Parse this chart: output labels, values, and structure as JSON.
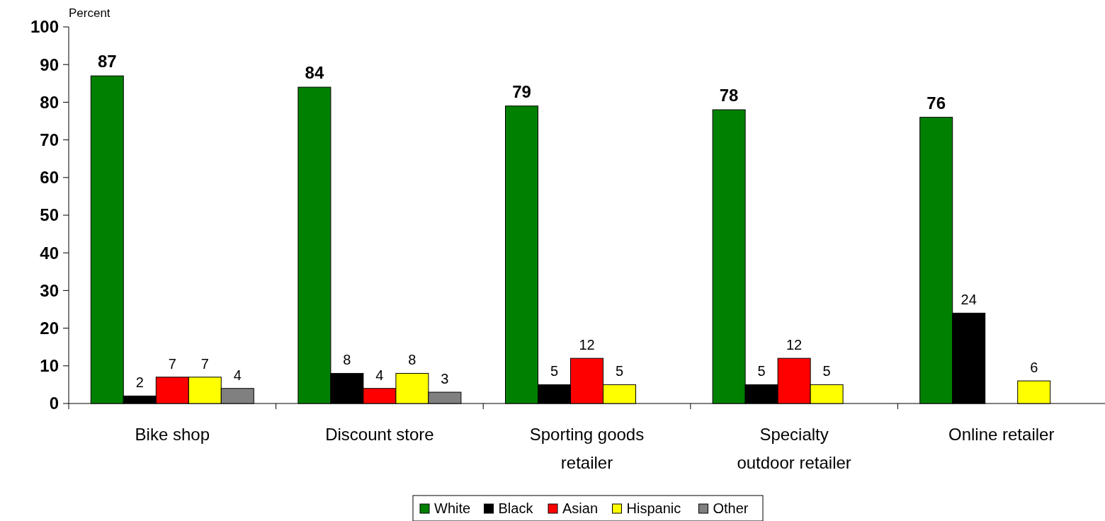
{
  "chart_data": {
    "type": "bar",
    "ylabel": "Percent",
    "categories": [
      "Bike shop",
      "Discount store",
      "Sporting goods retailer",
      "Specialty outdoor retailer",
      "Online retailer"
    ],
    "series": [
      {
        "name": "White",
        "color": "#008000",
        "values": [
          87,
          84,
          79,
          78,
          76
        ]
      },
      {
        "name": "Black",
        "color": "#000000",
        "values": [
          2,
          8,
          5,
          5,
          24
        ]
      },
      {
        "name": "Asian",
        "color": "#ff0000",
        "values": [
          7,
          4,
          12,
          12,
          null
        ]
      },
      {
        "name": "Hispanic",
        "color": "#ffff00",
        "values": [
          7,
          8,
          5,
          5,
          6
        ]
      },
      {
        "name": "Other",
        "color": "#808080",
        "values": [
          4,
          3,
          null,
          null,
          null
        ]
      }
    ],
    "ylim": [
      0,
      100
    ],
    "yticks": [
      0,
      10,
      20,
      30,
      40,
      50,
      60,
      70,
      80,
      90,
      100
    ],
    "data_labels": true,
    "legend": "bottom",
    "grid": false
  }
}
